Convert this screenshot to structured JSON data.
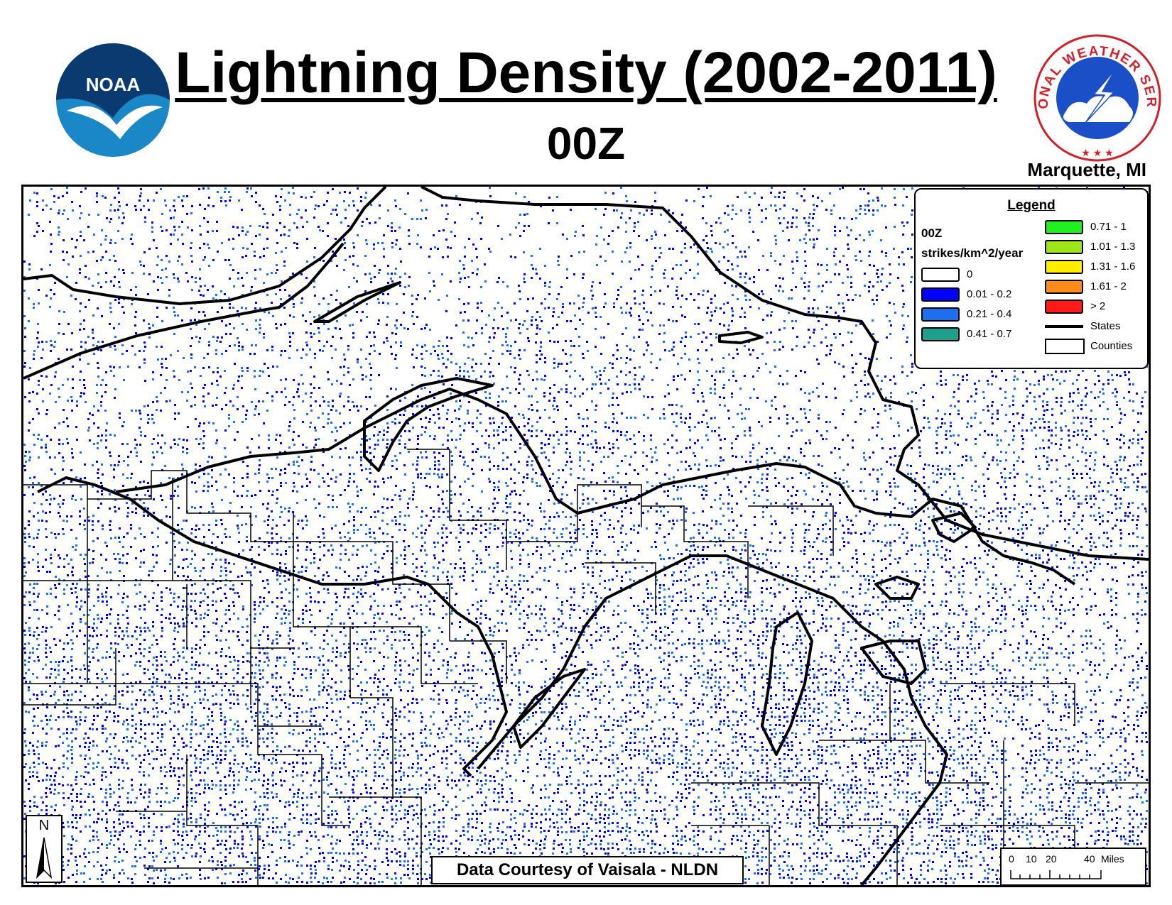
{
  "header": {
    "title": "Lightning Density (2002-2011)",
    "subtitle": "00Z",
    "office": "Marquette, MI",
    "noaa_logo_text": "NOAA",
    "nws_logo_text": "NATIONAL WEATHER SERVICE"
  },
  "legend": {
    "title": "Legend",
    "time": "00Z",
    "units": "strikes/km^2/year",
    "classes": [
      {
        "label": "0",
        "color": "#ffffff"
      },
      {
        "label": "0.01 - 0.2",
        "color": "#0000ff"
      },
      {
        "label": "0.21 - 0.4",
        "color": "#1e6ff0"
      },
      {
        "label": "0.41 - 0.7",
        "color": "#1f9e8a"
      },
      {
        "label": "0.71 - 1",
        "color": "#22ee22"
      },
      {
        "label": "1.01 - 1.3",
        "color": "#9ee61a"
      },
      {
        "label": "1.31 - 1.6",
        "color": "#ffee00"
      },
      {
        "label": "1.61 - 2",
        "color": "#ff8c1a"
      },
      {
        "label": "> 2",
        "color": "#ff1a1a"
      }
    ],
    "states_label": "States",
    "counties_label": "Counties"
  },
  "credit": "Data Courtesy of Vaisala - NLDN",
  "north_arrow": "N",
  "scale_bar": {
    "ticks": [
      "0",
      "10",
      "20",
      "40"
    ],
    "unit": "Miles"
  }
}
